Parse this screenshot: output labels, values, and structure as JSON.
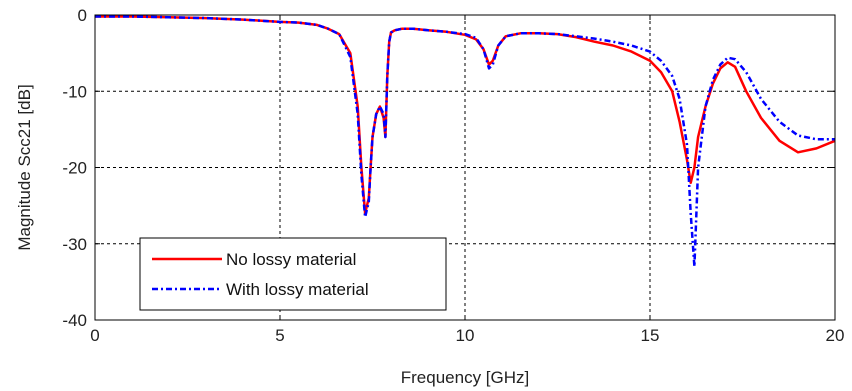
{
  "chart_data": {
    "type": "line",
    "title": "",
    "xlabel": "Frequency [GHz]",
    "ylabel": "Magnitude Scc21 [dB]",
    "xlim": [
      0,
      20
    ],
    "ylim": [
      -40,
      0
    ],
    "xticks": [
      0,
      5,
      10,
      15,
      20
    ],
    "yticks": [
      0,
      -10,
      -20,
      -30,
      -40
    ],
    "grid": true,
    "grid_style": "dashed",
    "legend_position": "bottom-left",
    "series": [
      {
        "name": "No lossy material",
        "color": "#ff0000",
        "style": "solid",
        "x": [
          0,
          1,
          2,
          3,
          4,
          5,
          5.5,
          6,
          6.3,
          6.6,
          6.9,
          7.1,
          7.2,
          7.3,
          7.4,
          7.45,
          7.5,
          7.6,
          7.7,
          7.8,
          7.85,
          7.9,
          7.95,
          8.0,
          8.1,
          8.3,
          8.6,
          9.0,
          9.5,
          10.0,
          10.3,
          10.5,
          10.65,
          10.75,
          10.9,
          11.1,
          11.5,
          12.0,
          12.5,
          13.0,
          13.5,
          14.0,
          14.5,
          15.0,
          15.3,
          15.6,
          15.8,
          16.0,
          16.1,
          16.2,
          16.3,
          16.5,
          16.7,
          16.9,
          17.1,
          17.3,
          17.6,
          18.0,
          18.5,
          19.0,
          19.5,
          20.0
        ],
        "y": [
          -0.2,
          -0.2,
          -0.3,
          -0.4,
          -0.6,
          -0.9,
          -1.0,
          -1.3,
          -1.8,
          -2.5,
          -5.0,
          -12.0,
          -20.0,
          -26.0,
          -24.0,
          -20.0,
          -16.0,
          -13.0,
          -12.0,
          -13.5,
          -16.0,
          -8.0,
          -3.5,
          -2.3,
          -2.0,
          -1.8,
          -1.8,
          -2.0,
          -2.2,
          -2.6,
          -3.2,
          -4.5,
          -6.5,
          -6.0,
          -4.0,
          -2.8,
          -2.4,
          -2.4,
          -2.5,
          -2.9,
          -3.5,
          -4.0,
          -4.8,
          -6.0,
          -7.5,
          -10.0,
          -14.0,
          -19.0,
          -22.0,
          -20.0,
          -16.0,
          -12.0,
          -9.0,
          -7.0,
          -6.2,
          -6.8,
          -10.0,
          -13.5,
          -16.5,
          -18.0,
          -17.5,
          -16.5
        ]
      },
      {
        "name": "With lossy material",
        "color": "#0000ff",
        "style": "dashdot",
        "x": [
          0,
          1,
          2,
          3,
          4,
          5,
          5.5,
          6,
          6.3,
          6.6,
          6.9,
          7.1,
          7.2,
          7.3,
          7.4,
          7.45,
          7.5,
          7.6,
          7.7,
          7.8,
          7.85,
          7.9,
          7.95,
          8.0,
          8.1,
          8.3,
          8.6,
          9.0,
          9.5,
          10.0,
          10.3,
          10.5,
          10.65,
          10.75,
          10.9,
          11.1,
          11.5,
          12.0,
          12.5,
          13.0,
          13.5,
          14.0,
          14.5,
          15.0,
          15.3,
          15.6,
          15.8,
          16.0,
          16.1,
          16.2,
          16.3,
          16.5,
          16.7,
          16.9,
          17.1,
          17.3,
          17.6,
          18.0,
          18.5,
          19.0,
          19.5,
          20.0
        ],
        "y": [
          -0.2,
          -0.2,
          -0.3,
          -0.4,
          -0.6,
          -0.9,
          -1.0,
          -1.3,
          -1.8,
          -2.5,
          -5.5,
          -13.0,
          -21.0,
          -26.5,
          -24.5,
          -20.0,
          -16.0,
          -13.0,
          -12.0,
          -13.0,
          -16.0,
          -8.0,
          -3.5,
          -2.3,
          -2.0,
          -1.8,
          -1.8,
          -2.0,
          -2.2,
          -2.5,
          -3.0,
          -4.5,
          -7.0,
          -6.5,
          -4.0,
          -2.8,
          -2.4,
          -2.4,
          -2.5,
          -2.8,
          -3.1,
          -3.5,
          -4.0,
          -4.8,
          -6.0,
          -8.0,
          -11.0,
          -17.0,
          -26.0,
          -33.0,
          -20.0,
          -12.0,
          -8.5,
          -6.5,
          -5.6,
          -5.8,
          -7.5,
          -11.0,
          -14.0,
          -15.8,
          -16.3,
          -16.3
        ]
      }
    ]
  }
}
